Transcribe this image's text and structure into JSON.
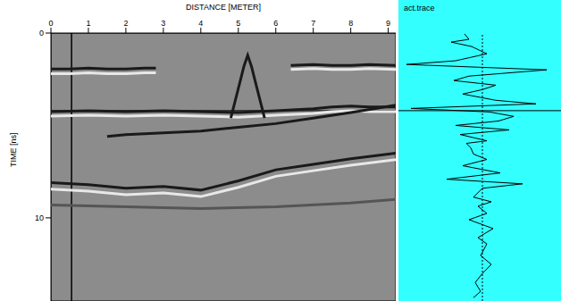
{
  "chart_data": [
    {
      "type": "line",
      "x_label": "DISTANCE [METER]",
      "y_label": "TIME [ns]",
      "xlim": [
        0,
        9.2
      ],
      "xticks": [
        0,
        1,
        2,
        3,
        4,
        5,
        6,
        7,
        8,
        9
      ],
      "ylim": [
        0,
        14.5
      ],
      "yticks": [
        0,
        10
      ],
      "color": "#8c8c8c",
      "cursor": {
        "distance": 0.55,
        "time": 4.2
      },
      "series": [
        {
          "color": "#1a1a1a",
          "x": [
            0,
            0.5,
            1,
            1.5,
            2,
            2.5,
            2.8
          ],
          "values": [
            1.95,
            1.95,
            1.9,
            1.95,
            1.95,
            1.9,
            1.9
          ]
        },
        {
          "color": "#e8e8e8",
          "x": [
            0,
            0.5,
            1,
            1.5,
            2,
            2.5,
            2.8
          ],
          "values": [
            2.2,
            2.2,
            2.15,
            2.2,
            2.2,
            2.15,
            2.15
          ]
        },
        {
          "color": "#1a1a1a",
          "x": [
            6.4,
            7,
            7.5,
            8,
            8.5,
            9.2
          ],
          "values": [
            1.75,
            1.7,
            1.75,
            1.75,
            1.7,
            1.75
          ]
        },
        {
          "color": "#e8e8e8",
          "x": [
            6.4,
            7,
            7.5,
            8,
            8.5,
            9.2
          ],
          "values": [
            1.97,
            1.92,
            1.97,
            1.97,
            1.92,
            1.97
          ]
        },
        {
          "color": "#1a1a1a",
          "x": [
            0,
            1,
            2,
            3,
            4,
            5,
            6,
            7,
            7.5,
            8,
            8.5,
            9.2
          ],
          "values": [
            4.25,
            4.2,
            4.25,
            4.2,
            4.25,
            4.3,
            4.2,
            4.1,
            4.0,
            3.95,
            4.0,
            4.0
          ]
        },
        {
          "color": "#e8e8e8",
          "x": [
            0,
            1,
            2,
            3,
            4,
            5,
            6,
            7,
            7.5,
            8,
            8.5,
            9.2
          ],
          "values": [
            4.5,
            4.45,
            4.5,
            4.45,
            4.5,
            4.55,
            4.45,
            4.35,
            4.25,
            4.2,
            4.25,
            4.25
          ]
        },
        {
          "color": "#1a1a1a",
          "x": [
            1.5,
            2,
            3,
            4,
            5,
            6,
            7,
            8,
            9.2
          ],
          "values": [
            5.6,
            5.5,
            5.4,
            5.3,
            5.1,
            4.9,
            4.6,
            4.3,
            3.9
          ]
        },
        {
          "color": "#1a1a1a",
          "x": [
            0,
            1,
            2,
            3,
            4,
            5,
            6,
            7,
            8,
            9.2
          ],
          "values": [
            8.1,
            8.2,
            8.4,
            8.3,
            8.5,
            8.0,
            7.4,
            7.1,
            6.8,
            6.5
          ]
        },
        {
          "color": "#e8e8e8",
          "x": [
            0,
            1,
            2,
            3,
            4,
            5,
            6,
            7,
            8,
            9.2
          ],
          "values": [
            8.45,
            8.55,
            8.75,
            8.65,
            8.85,
            8.35,
            7.75,
            7.45,
            7.15,
            6.85
          ]
        },
        {
          "color": "#555555",
          "x": [
            0,
            2,
            4,
            6,
            8,
            9.2
          ],
          "values": [
            9.3,
            9.4,
            9.5,
            9.4,
            9.2,
            9.0
          ]
        },
        {
          "color": "#1a1a1a",
          "x": [
            4.8,
            5.0,
            5.15,
            5.25,
            5.35,
            5.5,
            5.7
          ],
          "values": [
            4.6,
            3.0,
            1.8,
            1.2,
            1.8,
            3.0,
            4.6
          ]
        }
      ]
    },
    {
      "type": "line",
      "title": "act.trace",
      "tick_labels": false,
      "xlim": [
        -94,
        88
      ],
      "ylim": [
        0,
        14.5
      ],
      "reference_x": 0,
      "color": "#000000",
      "x": [
        -20,
        -15,
        -35,
        -12,
        5,
        -30,
        -85,
        72,
        -15,
        -32,
        15,
        0,
        -22,
        15,
        60,
        -80,
        8,
        35,
        18,
        -30,
        30,
        -25,
        5,
        -18,
        -13,
        -10,
        5,
        -22,
        20,
        -40,
        45,
        0,
        -10,
        10,
        -5,
        5,
        -15,
        12,
        -5,
        5,
        -2,
        10,
        0,
        -8,
        -2,
        -10
      ],
      "values": [
        0.05,
        0.34,
        0.49,
        0.73,
        1.12,
        1.5,
        1.7,
        1.99,
        2.33,
        2.57,
        2.82,
        3.06,
        3.3,
        3.64,
        3.83,
        4.08,
        4.27,
        4.51,
        4.76,
        5.0,
        5.24,
        5.49,
        5.83,
        5.97,
        6.21,
        6.55,
        6.84,
        7.18,
        7.57,
        7.91,
        8.16,
        8.4,
        8.88,
        9.13,
        9.37,
        9.76,
        10.1,
        10.58,
        11.07,
        11.41,
        12.04,
        12.52,
        13.01,
        13.5,
        13.98,
        14.32
      ]
    }
  ]
}
